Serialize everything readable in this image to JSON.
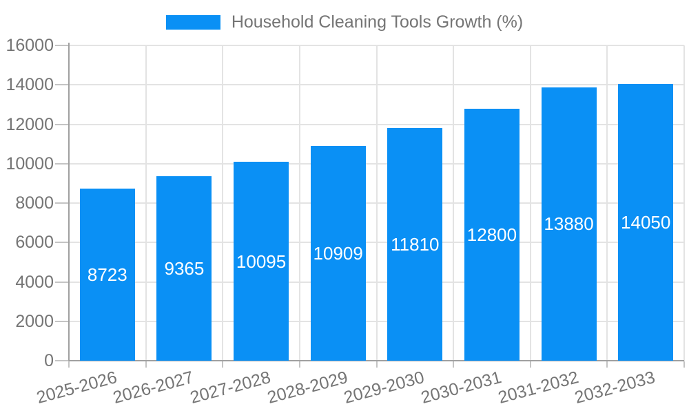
{
  "chart_data": {
    "type": "bar",
    "title": "Household Cleaning Tools Growth (%)",
    "categories": [
      "2025-2026",
      "2026-2027",
      "2027-2028",
      "2028-2029",
      "2029-2030",
      "2030-2031",
      "2031-2032",
      "2032-2033"
    ],
    "values": [
      8723,
      9365,
      10095,
      10909,
      11810,
      12800,
      13880,
      14050
    ],
    "xlabel": "",
    "ylabel": "",
    "ylim": [
      0,
      16000
    ],
    "ytick_step": 2000,
    "ytick_labels": [
      "0",
      "2000",
      "4000",
      "6000",
      "8000",
      "10000",
      "12000",
      "14000",
      "16000"
    ],
    "legend_position": "top",
    "grid": true,
    "colors": {
      "bar": "#0a90f5",
      "value_label": "#ffffff",
      "axis_label": "#757575",
      "gridline": "#e3e3e3",
      "axis_line": "#a0a0a0",
      "tick": "#c4c4c4",
      "background": "#ffffff"
    }
  }
}
